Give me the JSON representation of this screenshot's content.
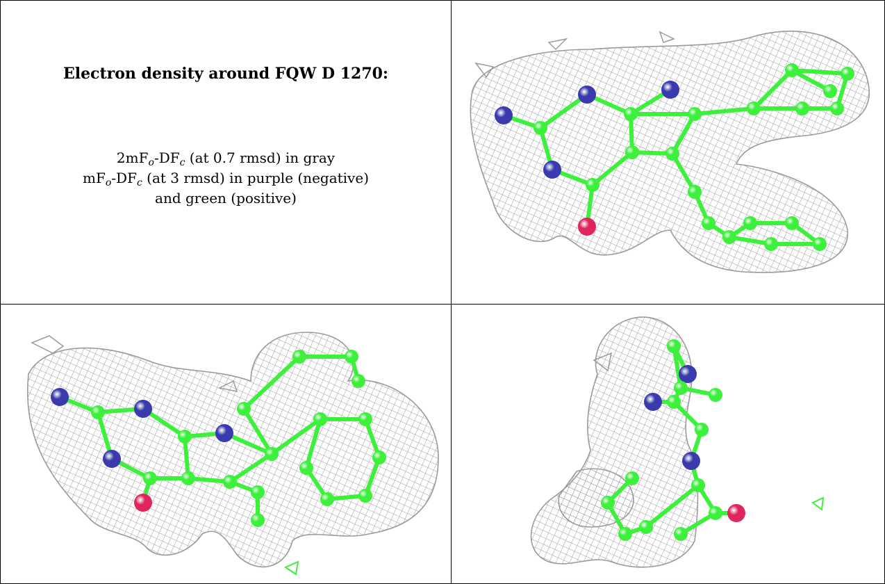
{
  "info": {
    "title": "Electron density around FQW D 1270:",
    "line1": {
      "a": "2mF",
      "b": "o",
      "c": "-DF",
      "d": "c",
      "e": " (at 0.7 rmsd) in gray"
    },
    "line2": {
      "a": "mF",
      "b": "o",
      "c": "-DF",
      "d": "c",
      "e": " (at 3 rmsd) in purple (negative)"
    },
    "line3": "and green (positive)"
  },
  "colors": {
    "mesh": "#9a9a9a",
    "carbon": "#3cf03c",
    "nitrogen": "#3a3aae",
    "oxygen": "#e0245e",
    "border": "#000000"
  },
  "views": [
    {
      "name": "view-1",
      "atoms": 34
    },
    {
      "name": "view-2",
      "atoms": 34
    },
    {
      "name": "view-3",
      "atoms": 34
    }
  ]
}
